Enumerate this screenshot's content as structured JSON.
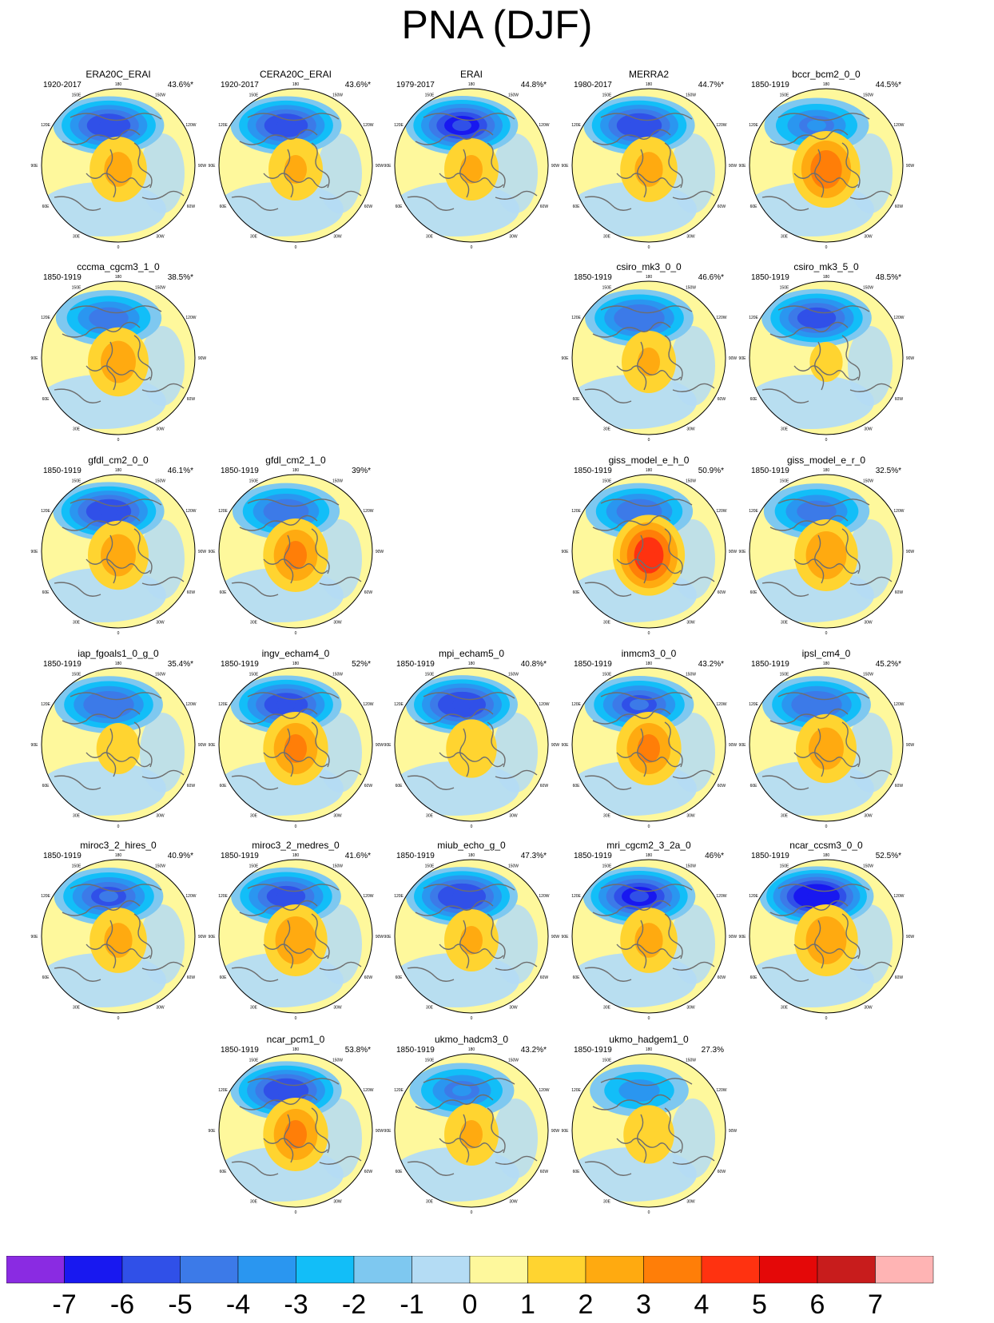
{
  "title": "PNA (DJF)",
  "chart_data": {
    "type": "heatmap",
    "title": "PNA (DJF)",
    "projection": "north-polar stereographic",
    "panel_longitude_labels": [
      "180",
      "150W",
      "150E",
      "120W",
      "120E",
      "90W",
      "90E",
      "60W",
      "60E",
      "30W",
      "30E",
      "0"
    ],
    "panels": [
      {
        "name": "ERA20C_ERAI",
        "period": "1920-2017",
        "variance": "43.6%*",
        "cell": [
          0,
          0
        ],
        "low": -5.5,
        "high": 2.2
      },
      {
        "name": "CERA20C_ERAI",
        "period": "1920-2017",
        "variance": "43.6%*",
        "cell": [
          0,
          1
        ],
        "low": -5.5,
        "high": 2.0
      },
      {
        "name": "ERAI",
        "period": "1979-2017",
        "variance": "44.8%*",
        "cell": [
          0,
          2
        ],
        "low": -6.0,
        "high": 2.0
      },
      {
        "name": "MERRA2",
        "period": "1980-2017",
        "variance": "44.7%*",
        "cell": [
          0,
          3
        ],
        "low": -5.6,
        "high": 2.2
      },
      {
        "name": "bccr_bcm2_0_0",
        "period": "1850-1919",
        "variance": "44.5%*",
        "cell": [
          0,
          4
        ],
        "low": -4.0,
        "high": 3.5
      },
      {
        "name": "cccma_cgcm3_1_0",
        "period": "1850-1919",
        "variance": "38.5%*",
        "cell": [
          1,
          0
        ],
        "low": -4.2,
        "high": 2.5
      },
      {
        "name": "csiro_mk3_0_0",
        "period": "1850-1919",
        "variance": "46.6%*",
        "cell": [
          1,
          3
        ],
        "low": -4.8,
        "high": 2.0
      },
      {
        "name": "csiro_mk3_5_0",
        "period": "1850-1919",
        "variance": "48.5%*",
        "cell": [
          1,
          4
        ],
        "low": -5.2,
        "high": 1.2
      },
      {
        "name": "gfdl_cm2_0_0",
        "period": "1850-1919",
        "variance": "46.1%*",
        "cell": [
          2,
          0
        ],
        "low": -5.6,
        "high": 2.5
      },
      {
        "name": "gfdl_cm2_1_0",
        "period": "1850-1919",
        "variance": "39%*",
        "cell": [
          2,
          1
        ],
        "low": -4.5,
        "high": 3.0
      },
      {
        "name": "giss_model_e_h_0",
        "period": "1850-1919",
        "variance": "50.9%*",
        "cell": [
          2,
          3
        ],
        "low": -4.5,
        "high": 4.5
      },
      {
        "name": "giss_model_e_r_0",
        "period": "1850-1919",
        "variance": "32.5%*",
        "cell": [
          2,
          4
        ],
        "low": -4.2,
        "high": 2.8
      },
      {
        "name": "iap_fgoals1_0_g_0",
        "period": "1850-1919",
        "variance": "35.4%*",
        "cell": [
          3,
          0
        ],
        "low": -4.8,
        "high": 1.5
      },
      {
        "name": "ingv_echam4_0",
        "period": "1850-1919",
        "variance": "52%*",
        "cell": [
          3,
          1
        ],
        "low": -5.5,
        "high": 3.0
      },
      {
        "name": "mpi_echam5_0",
        "period": "1850-1919",
        "variance": "40.8%*",
        "cell": [
          3,
          2
        ],
        "low": -5.8,
        "high": 1.8
      },
      {
        "name": "inmcm3_0_0",
        "period": "1850-1919",
        "variance": "43.2%*",
        "cell": [
          3,
          3
        ],
        "low": -5.0,
        "high": 3.0
      },
      {
        "name": "ipsl_cm4_0",
        "period": "1850-1919",
        "variance": "45.2%*",
        "cell": [
          3,
          4
        ],
        "low": -4.8,
        "high": 2.5
      },
      {
        "name": "miroc3_2_hires_0",
        "period": "1850-1919",
        "variance": "40.9%*",
        "cell": [
          4,
          0
        ],
        "low": -5.0,
        "high": 2.2
      },
      {
        "name": "miroc3_2_medres_0",
        "period": "1850-1919",
        "variance": "41.6%*",
        "cell": [
          4,
          1
        ],
        "low": -5.2,
        "high": 2.8
      },
      {
        "name": "miub_echo_g_0",
        "period": "1850-1919",
        "variance": "47.3%*",
        "cell": [
          4,
          2
        ],
        "low": -5.8,
        "high": 2.0
      },
      {
        "name": "mri_cgcm2_3_2a_0",
        "period": "1850-1919",
        "variance": "46%*",
        "cell": [
          4,
          3
        ],
        "low": -6.0,
        "high": 2.2
      },
      {
        "name": "ncar_ccsm3_0_0",
        "period": "1850-1919",
        "variance": "52.5%*",
        "cell": [
          4,
          4
        ],
        "low": -6.8,
        "high": 2.8
      },
      {
        "name": "ncar_pcm1_0",
        "period": "1850-1919",
        "variance": "53.8%*",
        "cell": [
          5,
          1
        ],
        "low": -5.6,
        "high": 3.0
      },
      {
        "name": "ukmo_hadcm3_0",
        "period": "1850-1919",
        "variance": "43.2%*",
        "cell": [
          5,
          2
        ],
        "low": -4.0,
        "high": 2.0
      },
      {
        "name": "ukmo_hadgem1_0",
        "period": "1850-1919",
        "variance": "27.3%",
        "cell": [
          5,
          3
        ],
        "low": -3.2,
        "high": 1.8
      }
    ],
    "colorbar": {
      "labels": [
        "-7",
        "-6",
        "-5",
        "-4",
        "-3",
        "-2",
        "-1",
        "0",
        "1",
        "2",
        "3",
        "4",
        "5",
        "6",
        "7"
      ],
      "colors": [
        "#8a2be2",
        "#1818f0",
        "#3050e8",
        "#3c7ae8",
        "#2a96f0",
        "#12bef8",
        "#7ec8f0",
        "#b4dcf4",
        "#fef89c",
        "#ffd430",
        "#ffaa10",
        "#ff7e08",
        "#ff3210",
        "#e40808",
        "#c81c1c",
        "#ffb4b4"
      ]
    }
  }
}
